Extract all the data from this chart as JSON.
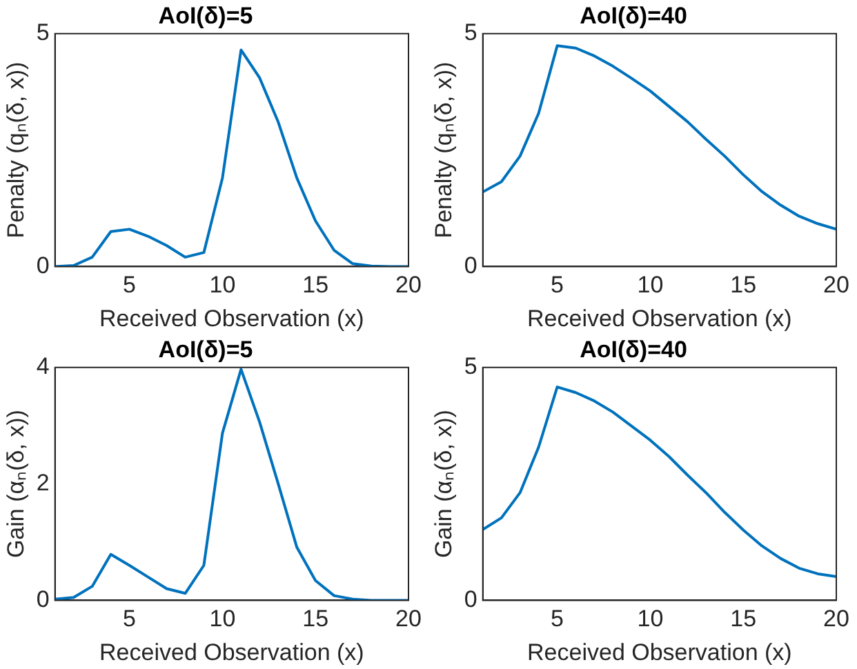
{
  "chart_data": [
    {
      "type": "line",
      "title": "AoI(δ)=5",
      "xlabel": "Received Observation (x)",
      "ylabel": "Penalty (qₙ(δ, x))",
      "x": [
        1,
        2,
        3,
        4,
        5,
        6,
        7,
        8,
        9,
        10,
        11,
        12,
        13,
        14,
        15,
        16,
        17,
        18,
        19,
        20
      ],
      "xlim": [
        1,
        20
      ],
      "xticks": [
        5,
        10,
        15,
        20
      ],
      "ylim": [
        0,
        5
      ],
      "yticks": [
        0,
        5
      ],
      "grid": false,
      "legend": false,
      "series": [
        {
          "color": "#0072bd",
          "values": [
            0,
            0.02,
            0.2,
            0.75,
            0.8,
            0.65,
            0.45,
            0.2,
            0.3,
            1.9,
            4.65,
            4.05,
            3.1,
            1.9,
            0.98,
            0.35,
            0.06,
            0.01,
            0,
            0
          ]
        }
      ]
    },
    {
      "type": "line",
      "title": "AoI(δ)=40",
      "xlabel": "Received Observation (x)",
      "ylabel": "Penalty (qₙ(δ, x))",
      "x": [
        1,
        2,
        3,
        4,
        5,
        6,
        7,
        8,
        9,
        10,
        11,
        12,
        13,
        14,
        15,
        16,
        17,
        18,
        19,
        20
      ],
      "xlim": [
        1,
        20
      ],
      "xticks": [
        5,
        10,
        15,
        20
      ],
      "ylim": [
        0,
        5
      ],
      "yticks": [
        0,
        5
      ],
      "grid": false,
      "legend": false,
      "series": [
        {
          "color": "#0072bd",
          "values": [
            1.6,
            1.82,
            2.37,
            3.29,
            4.74,
            4.69,
            4.52,
            4.3,
            4.04,
            3.77,
            3.44,
            3.11,
            2.73,
            2.37,
            1.97,
            1.61,
            1.32,
            1.08,
            0.92,
            0.8
          ]
        }
      ]
    },
    {
      "type": "line",
      "title": "AoI(δ)=5",
      "xlabel": "Received Observation (x)",
      "ylabel": "Gain (αₙ(δ, x))",
      "x": [
        1,
        2,
        3,
        4,
        5,
        6,
        7,
        8,
        9,
        10,
        11,
        12,
        13,
        14,
        15,
        16,
        17,
        18,
        19,
        20
      ],
      "xlim": [
        1,
        20
      ],
      "xticks": [
        5,
        10,
        15,
        20
      ],
      "ylim": [
        0,
        4
      ],
      "yticks": [
        0,
        2,
        4
      ],
      "grid": false,
      "legend": false,
      "series": [
        {
          "color": "#0072bd",
          "values": [
            0.02,
            0.05,
            0.24,
            0.79,
            0.6,
            0.4,
            0.2,
            0.12,
            0.6,
            2.87,
            3.97,
            3.06,
            2.0,
            0.91,
            0.34,
            0.08,
            0.02,
            0,
            0,
            0
          ]
        }
      ]
    },
    {
      "type": "line",
      "title": "AoI(δ)=40",
      "xlabel": "Received Observation (x)",
      "ylabel": "Gain (αₙ(δ, x))",
      "x": [
        1,
        2,
        3,
        4,
        5,
        6,
        7,
        8,
        9,
        10,
        11,
        12,
        13,
        14,
        15,
        16,
        17,
        18,
        19,
        20
      ],
      "xlim": [
        1,
        20
      ],
      "xticks": [
        5,
        10,
        15,
        20
      ],
      "ylim": [
        0,
        5
      ],
      "yticks": [
        0,
        5
      ],
      "grid": false,
      "legend": false,
      "series": [
        {
          "color": "#0072bd",
          "values": [
            1.52,
            1.77,
            2.31,
            3.29,
            4.58,
            4.46,
            4.28,
            4.04,
            3.74,
            3.44,
            3.09,
            2.69,
            2.31,
            1.89,
            1.51,
            1.17,
            0.9,
            0.69,
            0.57,
            0.51
          ]
        }
      ]
    }
  ]
}
